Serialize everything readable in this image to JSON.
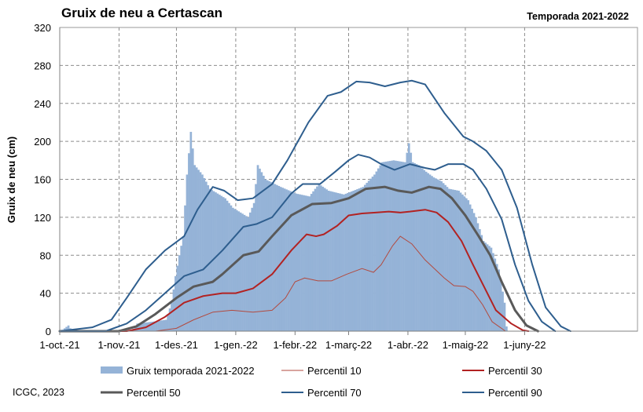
{
  "chart_data": {
    "type": "bar",
    "title": "Gruix de neu a Certascan",
    "season": "Temporada 2021-2022",
    "ylabel": "Gruix de neu (cm)",
    "xlabel": "",
    "credit": "ICGC, 2023",
    "ylim": [
      0,
      320
    ],
    "yticks": [
      "0",
      "40",
      "80",
      "120",
      "160",
      "200",
      "240",
      "280",
      "320"
    ],
    "xlim_dates": [
      "2021-10-01",
      "2022-07-30"
    ],
    "xticks": [
      {
        "date": "2021-10-01",
        "label": "1-oct.-21"
      },
      {
        "date": "2021-11-01",
        "label": "1-nov.-21"
      },
      {
        "date": "2021-12-01",
        "label": "1-des.-21"
      },
      {
        "date": "2022-01-01",
        "label": "1-gen.-22"
      },
      {
        "date": "2022-02-01",
        "label": "1-febr.-22"
      },
      {
        "date": "2022-03-01",
        "label": "1-març-22"
      },
      {
        "date": "2022-04-01",
        "label": "1-abr.-22"
      },
      {
        "date": "2022-05-01",
        "label": "1-maig-22"
      },
      {
        "date": "2022-06-01",
        "label": "1-juny-22"
      }
    ],
    "grid": true,
    "bar_series": {
      "name": "Gruix temporada 2021-2022",
      "color": "#95b3d7",
      "keypoints": [
        [
          "2021-10-01",
          0
        ],
        [
          "2021-10-05",
          6
        ],
        [
          "2021-10-06",
          3
        ],
        [
          "2021-10-10",
          0
        ],
        [
          "2021-11-07",
          0
        ],
        [
          "2021-11-10",
          8
        ],
        [
          "2021-11-18",
          10
        ],
        [
          "2021-11-25",
          12
        ],
        [
          "2021-11-28",
          30
        ],
        [
          "2021-11-30",
          58
        ],
        [
          "2021-12-02",
          80
        ],
        [
          "2021-12-04",
          100
        ],
        [
          "2021-12-06",
          165
        ],
        [
          "2021-12-08",
          210
        ],
        [
          "2021-12-10",
          175
        ],
        [
          "2021-12-14",
          165
        ],
        [
          "2021-12-18",
          150
        ],
        [
          "2021-12-22",
          145
        ],
        [
          "2021-12-26",
          140
        ],
        [
          "2021-12-30",
          130
        ],
        [
          "2022-01-03",
          125
        ],
        [
          "2022-01-07",
          120
        ],
        [
          "2022-01-10",
          135
        ],
        [
          "2022-01-12",
          175
        ],
        [
          "2022-01-16",
          160
        ],
        [
          "2022-01-24",
          152
        ],
        [
          "2022-02-01",
          145
        ],
        [
          "2022-02-08",
          142
        ],
        [
          "2022-02-11",
          150
        ],
        [
          "2022-02-13",
          155
        ],
        [
          "2022-02-18",
          148
        ],
        [
          "2022-02-26",
          144
        ],
        [
          "2022-03-03",
          148
        ],
        [
          "2022-03-08",
          152
        ],
        [
          "2022-03-14",
          165
        ],
        [
          "2022-03-18",
          178
        ],
        [
          "2022-03-24",
          180
        ],
        [
          "2022-03-30",
          178
        ],
        [
          "2022-04-01",
          198
        ],
        [
          "2022-04-03",
          178
        ],
        [
          "2022-04-06",
          175
        ],
        [
          "2022-04-10",
          168
        ],
        [
          "2022-04-14",
          162
        ],
        [
          "2022-04-18",
          158
        ],
        [
          "2022-04-22",
          150
        ],
        [
          "2022-04-27",
          148
        ],
        [
          "2022-05-02",
          138
        ],
        [
          "2022-05-06",
          120
        ],
        [
          "2022-05-10",
          95
        ],
        [
          "2022-05-14",
          88
        ],
        [
          "2022-05-18",
          65
        ],
        [
          "2022-05-21",
          30
        ],
        [
          "2022-05-22",
          5
        ],
        [
          "2022-05-23",
          0
        ]
      ]
    },
    "series": [
      {
        "name": "Percentil 10",
        "color": "#b24a3f",
        "width": 1,
        "points": [
          [
            "2021-10-01",
            0
          ],
          [
            "2021-11-20",
            0
          ],
          [
            "2021-12-01",
            3
          ],
          [
            "2021-12-10",
            12
          ],
          [
            "2021-12-20",
            20
          ],
          [
            "2021-12-30",
            22
          ],
          [
            "2022-01-10",
            20
          ],
          [
            "2022-01-20",
            22
          ],
          [
            "2022-01-27",
            35
          ],
          [
            "2022-02-01",
            52
          ],
          [
            "2022-02-06",
            56
          ],
          [
            "2022-02-13",
            53
          ],
          [
            "2022-02-20",
            53
          ],
          [
            "2022-02-28",
            60
          ],
          [
            "2022-03-08",
            66
          ],
          [
            "2022-03-14",
            62
          ],
          [
            "2022-03-18",
            70
          ],
          [
            "2022-03-24",
            90
          ],
          [
            "2022-03-28",
            100
          ],
          [
            "2022-04-03",
            92
          ],
          [
            "2022-04-10",
            75
          ],
          [
            "2022-04-20",
            56
          ],
          [
            "2022-04-25",
            48
          ],
          [
            "2022-05-01",
            47
          ],
          [
            "2022-05-05",
            42
          ],
          [
            "2022-05-10",
            28
          ],
          [
            "2022-05-15",
            10
          ],
          [
            "2022-05-22",
            0
          ]
        ]
      },
      {
        "name": "Percentil 30",
        "color": "#b22222",
        "width": 2,
        "points": [
          [
            "2021-10-01",
            0
          ],
          [
            "2021-11-05",
            0
          ],
          [
            "2021-11-15",
            4
          ],
          [
            "2021-11-25",
            15
          ],
          [
            "2021-12-05",
            30
          ],
          [
            "2021-12-15",
            37
          ],
          [
            "2021-12-25",
            40
          ],
          [
            "2022-01-01",
            40
          ],
          [
            "2022-01-10",
            45
          ],
          [
            "2022-01-20",
            60
          ],
          [
            "2022-01-30",
            85
          ],
          [
            "2022-02-07",
            102
          ],
          [
            "2022-02-12",
            100
          ],
          [
            "2022-02-16",
            102
          ],
          [
            "2022-02-23",
            111
          ],
          [
            "2022-03-01",
            122
          ],
          [
            "2022-03-08",
            124
          ],
          [
            "2022-03-15",
            125
          ],
          [
            "2022-03-22",
            126
          ],
          [
            "2022-03-28",
            125
          ],
          [
            "2022-04-02",
            126
          ],
          [
            "2022-04-10",
            128
          ],
          [
            "2022-04-16",
            125
          ],
          [
            "2022-04-22",
            115
          ],
          [
            "2022-04-29",
            95
          ],
          [
            "2022-05-05",
            70
          ],
          [
            "2022-05-12",
            42
          ],
          [
            "2022-05-17",
            22
          ],
          [
            "2022-05-25",
            8
          ],
          [
            "2022-05-31",
            1
          ],
          [
            "2022-06-03",
            0
          ]
        ]
      },
      {
        "name": "Percentil 50",
        "color": "#595959",
        "width": 3,
        "points": [
          [
            "2021-10-01",
            0
          ],
          [
            "2021-11-01",
            0
          ],
          [
            "2021-11-10",
            5
          ],
          [
            "2021-11-20",
            18
          ],
          [
            "2021-12-01",
            35
          ],
          [
            "2021-12-10",
            47
          ],
          [
            "2021-12-20",
            52
          ],
          [
            "2021-12-25",
            60
          ],
          [
            "2022-01-05",
            80
          ],
          [
            "2022-01-13",
            84
          ],
          [
            "2022-01-20",
            100
          ],
          [
            "2022-01-30",
            122
          ],
          [
            "2022-02-10",
            134
          ],
          [
            "2022-02-20",
            135
          ],
          [
            "2022-03-01",
            140
          ],
          [
            "2022-03-10",
            150
          ],
          [
            "2022-03-20",
            152
          ],
          [
            "2022-03-27",
            148
          ],
          [
            "2022-04-03",
            146
          ],
          [
            "2022-04-12",
            152
          ],
          [
            "2022-04-18",
            150
          ],
          [
            "2022-04-24",
            140
          ],
          [
            "2022-05-01",
            122
          ],
          [
            "2022-05-08",
            100
          ],
          [
            "2022-05-14",
            80
          ],
          [
            "2022-05-20",
            52
          ],
          [
            "2022-05-27",
            22
          ],
          [
            "2022-06-02",
            6
          ],
          [
            "2022-06-08",
            0
          ]
        ]
      },
      {
        "name": "Percentil 70",
        "color": "#2e5e8e",
        "width": 2,
        "points": [
          [
            "2021-10-01",
            0
          ],
          [
            "2021-10-25",
            0
          ],
          [
            "2021-11-05",
            8
          ],
          [
            "2021-11-15",
            22
          ],
          [
            "2021-11-25",
            40
          ],
          [
            "2021-12-05",
            58
          ],
          [
            "2021-12-15",
            65
          ],
          [
            "2021-12-25",
            85
          ],
          [
            "2022-01-05",
            110
          ],
          [
            "2022-01-12",
            113
          ],
          [
            "2022-01-20",
            120
          ],
          [
            "2022-01-30",
            145
          ],
          [
            "2022-02-05",
            155
          ],
          [
            "2022-02-14",
            155
          ],
          [
            "2022-02-22",
            168
          ],
          [
            "2022-03-01",
            180
          ],
          [
            "2022-03-06",
            186
          ],
          [
            "2022-03-12",
            183
          ],
          [
            "2022-03-18",
            176
          ],
          [
            "2022-03-25",
            170
          ],
          [
            "2022-04-02",
            176
          ],
          [
            "2022-04-10",
            172
          ],
          [
            "2022-04-15",
            170
          ],
          [
            "2022-04-22",
            176
          ],
          [
            "2022-04-30",
            176
          ],
          [
            "2022-05-05",
            170
          ],
          [
            "2022-05-12",
            150
          ],
          [
            "2022-05-20",
            118
          ],
          [
            "2022-05-27",
            70
          ],
          [
            "2022-06-03",
            32
          ],
          [
            "2022-06-10",
            10
          ],
          [
            "2022-06-17",
            0
          ]
        ]
      },
      {
        "name": "Percentil 90",
        "color": "#2e5e8e",
        "width": 2,
        "points": [
          [
            "2021-10-01",
            0
          ],
          [
            "2021-10-18",
            4
          ],
          [
            "2021-10-28",
            12
          ],
          [
            "2021-11-05",
            35
          ],
          [
            "2021-11-15",
            65
          ],
          [
            "2021-11-25",
            85
          ],
          [
            "2021-12-05",
            100
          ],
          [
            "2021-12-12",
            128
          ],
          [
            "2021-12-20",
            152
          ],
          [
            "2021-12-26",
            148
          ],
          [
            "2022-01-02",
            138
          ],
          [
            "2022-01-10",
            140
          ],
          [
            "2022-01-20",
            155
          ],
          [
            "2022-01-28",
            180
          ],
          [
            "2022-02-08",
            220
          ],
          [
            "2022-02-18",
            248
          ],
          [
            "2022-02-25",
            252
          ],
          [
            "2022-03-05",
            263
          ],
          [
            "2022-03-12",
            262
          ],
          [
            "2022-03-20",
            258
          ],
          [
            "2022-03-28",
            262
          ],
          [
            "2022-04-03",
            264
          ],
          [
            "2022-04-10",
            260
          ],
          [
            "2022-04-20",
            230
          ],
          [
            "2022-04-30",
            205
          ],
          [
            "2022-05-05",
            200
          ],
          [
            "2022-05-12",
            190
          ],
          [
            "2022-05-20",
            170
          ],
          [
            "2022-05-28",
            130
          ],
          [
            "2022-06-05",
            70
          ],
          [
            "2022-06-12",
            25
          ],
          [
            "2022-06-20",
            5
          ],
          [
            "2022-06-25",
            0
          ]
        ]
      }
    ],
    "legend": [
      {
        "name": "Gruix temporada 2021-2022",
        "kind": "bar",
        "color": "#95b3d7"
      },
      {
        "name": "Percentil 10",
        "kind": "line",
        "color": "#b24a3f",
        "width": 1
      },
      {
        "name": "Percentil 30",
        "kind": "line",
        "color": "#b22222",
        "width": 2
      },
      {
        "name": "Percentil 50",
        "kind": "line",
        "color": "#595959",
        "width": 3
      },
      {
        "name": "Percentil 70",
        "kind": "line",
        "color": "#2e5e8e",
        "width": 2
      },
      {
        "name": "Percentil 90",
        "kind": "line",
        "color": "#2e5e8e",
        "width": 2
      }
    ],
    "legend_placement": "bottom"
  }
}
